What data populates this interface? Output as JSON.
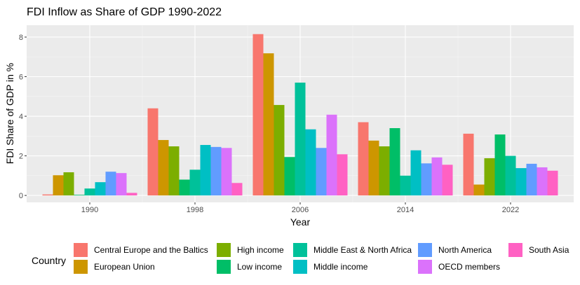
{
  "chart_data": {
    "type": "bar",
    "title": "FDI Inflow as Share of GDP 1990-2022",
    "xlabel": "Year",
    "ylabel": "FDI Share of GDP in %",
    "ylim": [
      -0.35,
      8.6
    ],
    "yticks": [
      0,
      2,
      4,
      6,
      8
    ],
    "grid": true,
    "legend_title": "Country",
    "legend_position": "bottom",
    "categories": [
      "1990",
      "1998",
      "2006",
      "2014",
      "2022"
    ],
    "series": [
      {
        "name": "Central Europe and the Baltics",
        "color": "#F8766D",
        "values": [
          0.05,
          4.4,
          8.15,
          3.7,
          3.12
        ]
      },
      {
        "name": "European Union",
        "color": "#CD9600",
        "values": [
          1.02,
          2.8,
          7.18,
          2.77,
          0.55
        ]
      },
      {
        "name": "High income",
        "color": "#7CAE00",
        "values": [
          1.17,
          2.48,
          4.57,
          2.48,
          1.88
        ]
      },
      {
        "name": "Low income",
        "color": "#00BE67",
        "values": [
          0.03,
          0.8,
          1.94,
          3.4,
          3.08
        ]
      },
      {
        "name": "Middle East & North Africa",
        "color": "#00C19A",
        "values": [
          0.35,
          1.3,
          5.7,
          1.0,
          2.0
        ]
      },
      {
        "name": "Middle income",
        "color": "#00BFC4",
        "values": [
          0.67,
          2.55,
          3.34,
          2.28,
          1.38
        ]
      },
      {
        "name": "North America",
        "color": "#619CFF",
        "values": [
          1.2,
          2.45,
          2.4,
          1.62,
          1.6
        ]
      },
      {
        "name": "OECD members",
        "color": "#DB72FB",
        "values": [
          1.13,
          2.4,
          4.08,
          1.92,
          1.42
        ]
      },
      {
        "name": "South Asia",
        "color": "#FF61C3",
        "values": [
          0.13,
          0.63,
          2.08,
          1.55,
          1.25
        ]
      }
    ]
  }
}
